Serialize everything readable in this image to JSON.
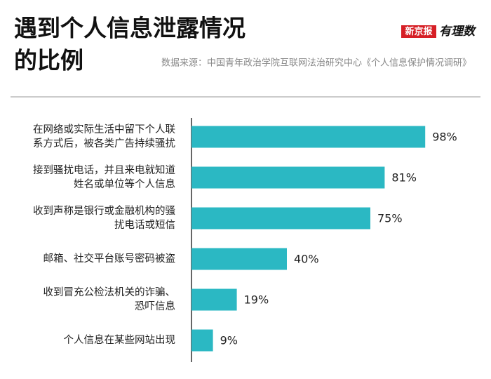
{
  "chart_data": {
    "type": "hbar",
    "title": [
      "遇到个人信息泄露情况",
      "的比例"
    ],
    "source": "数据来源：中国青年政治学院互联网法治研究中心《个人信息保护情况调研》",
    "logo": {
      "brand": "新京报",
      "column": "有理数"
    },
    "categories": [
      [
        "在网络或实际生活中留下个人联",
        "系方式后，被各类广告持续骚扰"
      ],
      [
        "接到骚扰电话，并且来电就知道",
        "姓名或单位等个人信息"
      ],
      [
        "收到声称是银行或金融机构的骚",
        "扰电话或短信"
      ],
      [
        "邮箱、社交平台账号密码被盗"
      ],
      [
        "收到冒充公检法机关的诈骗、",
        "恐吓信息"
      ],
      [
        "个人信息在某些网站出现"
      ]
    ],
    "values": [
      98,
      81,
      75,
      40,
      19,
      9
    ],
    "value_labels": [
      "98%",
      "81%",
      "75%",
      "40%",
      "19%",
      "9%"
    ],
    "color": "#2bb8c3",
    "xlim": [
      0,
      100
    ]
  }
}
